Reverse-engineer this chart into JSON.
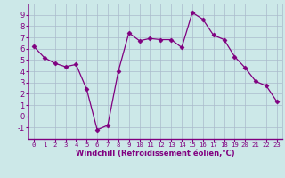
{
  "x": [
    0,
    1,
    2,
    3,
    4,
    5,
    6,
    7,
    8,
    9,
    10,
    11,
    12,
    13,
    14,
    15,
    16,
    17,
    18,
    19,
    20,
    21,
    22,
    23
  ],
  "y": [
    6.2,
    5.2,
    4.7,
    4.4,
    4.6,
    2.4,
    -1.2,
    -0.8,
    4.0,
    7.4,
    6.7,
    6.9,
    6.8,
    6.8,
    6.1,
    9.2,
    8.6,
    7.2,
    6.8,
    5.3,
    4.3,
    3.1,
    2.7,
    1.3
  ],
  "line_color": "#800080",
  "marker": "D",
  "marker_size": 2.5,
  "bg_color": "#cce8e8",
  "grid_color": "#aabbcc",
  "xlabel": "Windchill (Refroidissement éolien,°C)",
  "ylim": [
    -2,
    10
  ],
  "xlim": [
    -0.5,
    23.5
  ],
  "yticks": [
    -1,
    0,
    1,
    2,
    3,
    4,
    5,
    6,
    7,
    8,
    9
  ],
  "xticks": [
    0,
    1,
    2,
    3,
    4,
    5,
    6,
    7,
    8,
    9,
    10,
    11,
    12,
    13,
    14,
    15,
    16,
    17,
    18,
    19,
    20,
    21,
    22,
    23
  ],
  "tick_color": "#800080",
  "label_color": "#800080",
  "axis_line_color": "#800080",
  "spine_bottom_color": "#800080",
  "xlabel_fontsize": 6.0,
  "tick_fontsize_x": 5.2,
  "tick_fontsize_y": 6.0
}
